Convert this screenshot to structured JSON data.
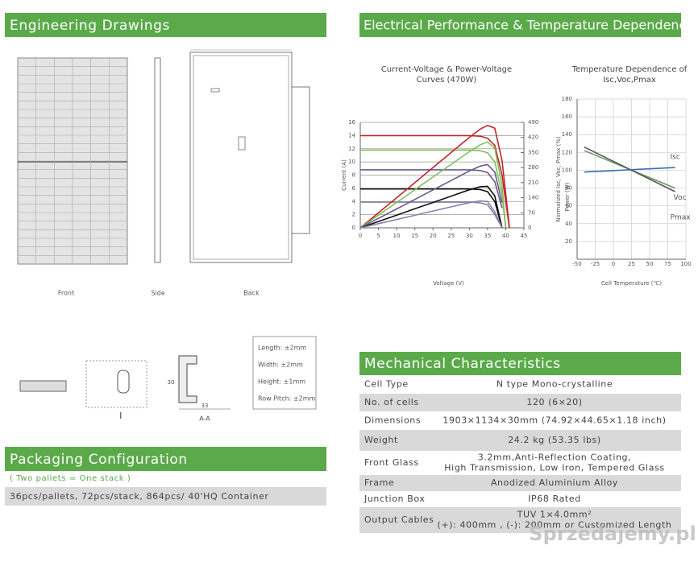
{
  "drawings": {
    "title": "Engineering Drawings",
    "views": [
      "Front",
      "Side",
      "Back"
    ],
    "section_labels": [
      "I",
      "A-A"
    ],
    "section_dims": [
      "33",
      "30"
    ],
    "tolerances": [
      "Length: ±2mm",
      "Width: ±2mm",
      "Height: ±1mm",
      "Row Pitch: ±2mm"
    ]
  },
  "electrical": {
    "title": "Electrical Performance & Temperature Dependence"
  },
  "chart_data": [
    {
      "type": "line",
      "title": [
        "Current-Voltage & Power-Voltage",
        "Curves (470W)"
      ],
      "x_label": "Voltage (V)",
      "y_label": "Current (A)",
      "y2_label": "Power (W)",
      "x": [
        0,
        5,
        10,
        15,
        20,
        25,
        30,
        33,
        35,
        37,
        39,
        40,
        41
      ],
      "xlim": [
        0,
        45
      ],
      "xticks": [
        0,
        5,
        10,
        15,
        20,
        25,
        30,
        35,
        40,
        45
      ],
      "ylim": [
        0,
        16
      ],
      "yticks": [
        0,
        2,
        4,
        6,
        8,
        10,
        12,
        14,
        16
      ],
      "y2lim": [
        0,
        490
      ],
      "y2ticks": [
        0,
        70,
        140,
        210,
        280,
        350,
        420,
        490
      ],
      "grid": true,
      "series": [
        {
          "color": "#c0262d",
          "values": [
            14,
            14,
            14,
            14,
            14,
            14,
            14,
            13.9,
            13.6,
            12.5,
            8,
            4,
            0
          ]
        },
        {
          "color": "#7fc05a",
          "values": [
            11.8,
            11.8,
            11.8,
            11.8,
            11.8,
            11.8,
            11.8,
            11.7,
            11.4,
            10,
            5,
            0,
            null
          ]
        },
        {
          "color": "#6a5a8c",
          "values": [
            8.8,
            8.8,
            8.8,
            8.8,
            8.8,
            8.8,
            8.8,
            8.7,
            8.4,
            7,
            3,
            null,
            null
          ]
        },
        {
          "color": "#111111",
          "values": [
            5.9,
            5.9,
            5.9,
            5.9,
            5.9,
            5.9,
            5.9,
            5.8,
            5.5,
            4,
            0,
            null,
            null
          ]
        },
        {
          "color": "#8a7fa8",
          "values": [
            3.9,
            3.9,
            3.9,
            3.9,
            3.9,
            3.9,
            3.9,
            3.8,
            3.5,
            2,
            0,
            null,
            null
          ]
        },
        {
          "color": "#c0262d",
          "axis": "y2",
          "values": [
            0,
            70,
            140,
            210,
            280,
            350,
            420,
            459,
            476,
            463,
            312,
            160,
            0
          ]
        },
        {
          "color": "#7fc05a",
          "axis": "y2",
          "values": [
            0,
            59,
            118,
            177,
            236,
            295,
            354,
            386,
            399,
            370,
            195,
            0,
            null
          ]
        },
        {
          "color": "#6a5a8c",
          "axis": "y2",
          "values": [
            0,
            44,
            88,
            132,
            176,
            220,
            264,
            287,
            294,
            259,
            117,
            null,
            null
          ]
        },
        {
          "color": "#111111",
          "axis": "y2",
          "values": [
            0,
            29.5,
            59,
            88.5,
            118,
            147.5,
            177,
            191,
            192.5,
            148,
            0,
            null,
            null
          ]
        },
        {
          "color": "#8a7fa8",
          "axis": "y2",
          "values": [
            0,
            19.5,
            39,
            58.5,
            78,
            97.5,
            117,
            125,
            122.5,
            74,
            0,
            null,
            null
          ]
        }
      ]
    },
    {
      "type": "line",
      "title": [
        "Temperature Dependence of",
        "Isc,Voc,Pmax"
      ],
      "x_label": "Cell Temperature (℃)",
      "y_label": "Normalized Isc, Voc, Pmax (%)",
      "x": [
        -40,
        85
      ],
      "xlim": [
        -50,
        100
      ],
      "xticks": [
        -50,
        -25,
        0,
        25,
        50,
        75,
        100
      ],
      "ylim": [
        0,
        180
      ],
      "yticks": [
        20,
        40,
        60,
        80,
        100,
        120,
        140,
        160,
        180
      ],
      "grid": true,
      "series": [
        {
          "name": "Isc",
          "color": "#3b6db3",
          "values": [
            98,
            103
          ]
        },
        {
          "name": "Voc",
          "color": "#6f9a6a",
          "values": [
            122,
            80
          ]
        },
        {
          "name": "Pmax",
          "color": "#555555",
          "values": [
            126,
            76
          ]
        }
      ]
    }
  ],
  "mechanical": {
    "title": "Mechanical Characteristics",
    "rows": [
      {
        "label": "Cell Type",
        "value": [
          "N type Mono-crystalline"
        ]
      },
      {
        "label": "No. of cells",
        "value": [
          "120 (6×20)"
        ]
      },
      {
        "label": "Dimensions",
        "value": [
          "1903×1134×30mm (74.92×44.65×1.18 inch)"
        ]
      },
      {
        "label": "Weight",
        "value": [
          "24.2 kg (53.35 lbs)"
        ]
      },
      {
        "label": "Front Glass",
        "value": [
          "3.2mm,Anti-Reflection Coating,",
          "High Transmission, Low Iron, Tempered Glass"
        ]
      },
      {
        "label": "Frame",
        "value": [
          "Anodized Aluminium Alloy"
        ]
      },
      {
        "label": "Junction Box",
        "value": [
          "IP68 Rated"
        ]
      },
      {
        "label": "Output Cables",
        "value": [
          "TUV 1×4.0mm²",
          "(+): 400mm , (-): 200mm or Customized Length"
        ]
      }
    ]
  },
  "packaging": {
    "title": "Packaging Configuration",
    "note": "( Two pallets = One stack )",
    "detail": "36pcs/pallets, 72pcs/stack, 864pcs/ 40'HQ Container"
  },
  "watermark": "Sprzedajemy.pl"
}
